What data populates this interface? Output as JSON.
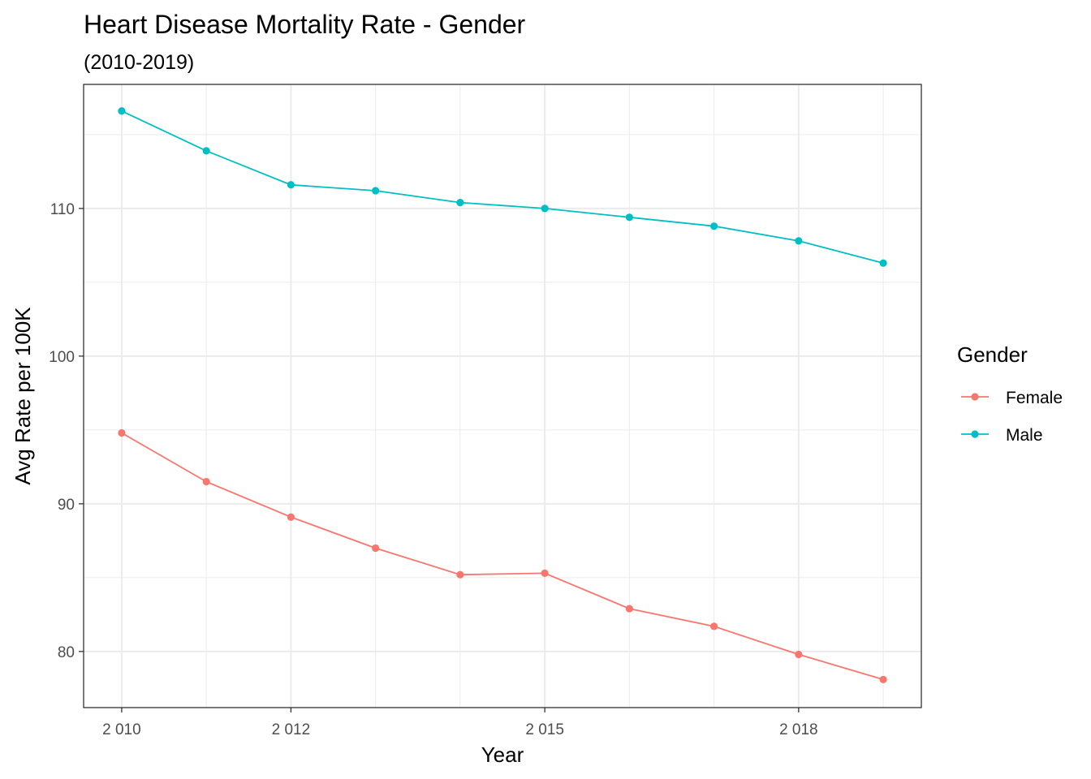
{
  "chart_data": {
    "type": "line",
    "title": "Heart Disease Mortality Rate - Gender",
    "subtitle": "(2010-2019)",
    "xlabel": "Year",
    "ylabel": "Avg Rate per 100K",
    "x": [
      2010,
      2011,
      2012,
      2013,
      2014,
      2015,
      2016,
      2017,
      2018,
      2019
    ],
    "x_tick_labels": [
      "2 010",
      "",
      "2 012",
      "",
      "",
      "2 015",
      "",
      "",
      "2 018",
      ""
    ],
    "y_ticks": [
      80,
      90,
      100,
      110
    ],
    "y_tick_labels": [
      "80",
      "90",
      "100",
      "110"
    ],
    "ylim": [
      76.2,
      118.4
    ],
    "xlim": [
      2009.55,
      2019.45
    ],
    "grid": true,
    "legend_position": "right",
    "legend_title": "Gender",
    "series": [
      {
        "name": "Female",
        "color": "#F8766D",
        "values": [
          94.8,
          91.5,
          89.1,
          87.0,
          85.2,
          85.3,
          82.9,
          81.7,
          79.8,
          78.1
        ]
      },
      {
        "name": "Male",
        "color": "#00BFC4",
        "values": [
          116.6,
          113.9,
          111.6,
          111.2,
          110.4,
          110.0,
          109.4,
          108.8,
          107.8,
          106.3
        ]
      }
    ]
  }
}
